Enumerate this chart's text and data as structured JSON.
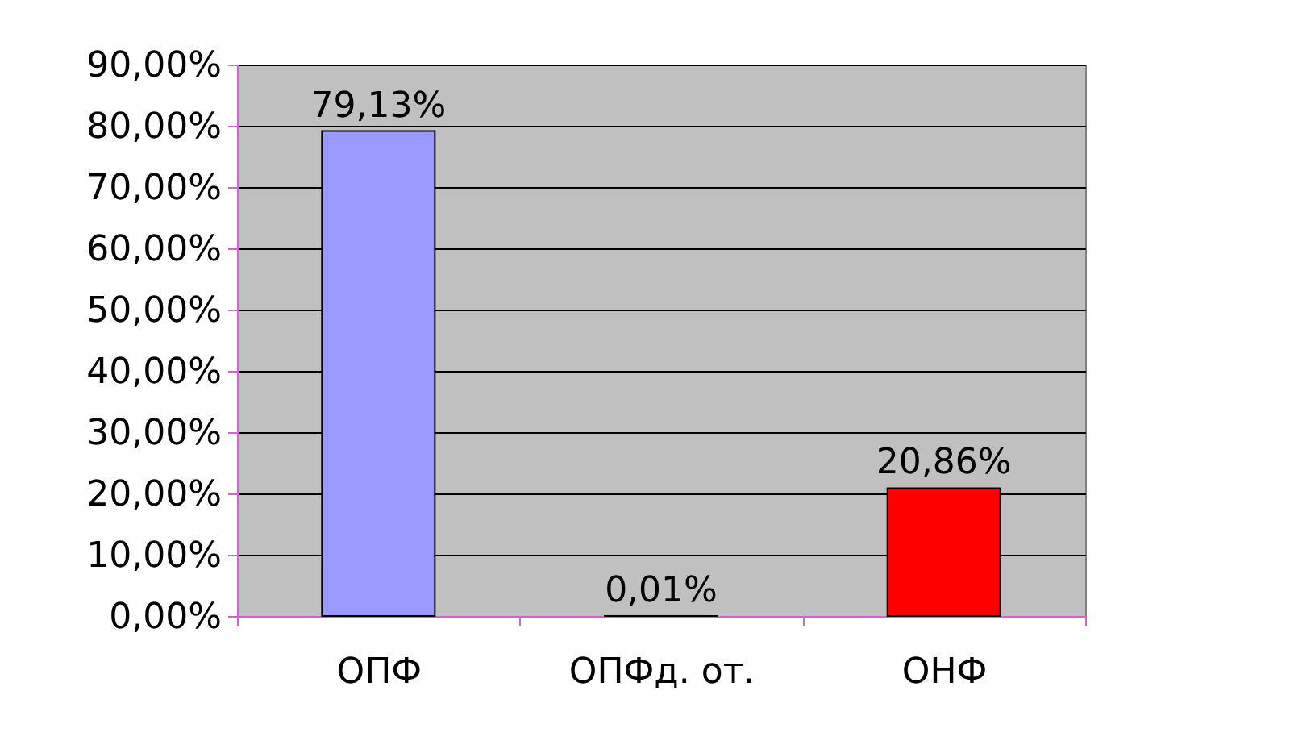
{
  "chart_data": {
    "type": "bar",
    "categories": [
      "ОПФ",
      "ОПФд. от.",
      "ОНФ"
    ],
    "values": [
      79.13,
      0.01,
      20.86
    ],
    "colors": [
      "#9999ff",
      "#993366",
      "#ff0000"
    ],
    "value_labels": [
      "79,13%",
      "0,01%",
      "20,86%"
    ],
    "ylim": [
      0,
      90
    ],
    "yticks": [
      {
        "value": 0,
        "label": "0,00%"
      },
      {
        "value": 10,
        "label": "10,00%"
      },
      {
        "value": 20,
        "label": "20,00%"
      },
      {
        "value": 30,
        "label": "30,00%"
      },
      {
        "value": 40,
        "label": "40,00%"
      },
      {
        "value": 50,
        "label": "50,00%"
      },
      {
        "value": 60,
        "label": "60,00%"
      },
      {
        "value": 70,
        "label": "70,00%"
      },
      {
        "value": 80,
        "label": "80,00%"
      },
      {
        "value": 90,
        "label": "90,00%"
      }
    ],
    "grid": "y"
  }
}
